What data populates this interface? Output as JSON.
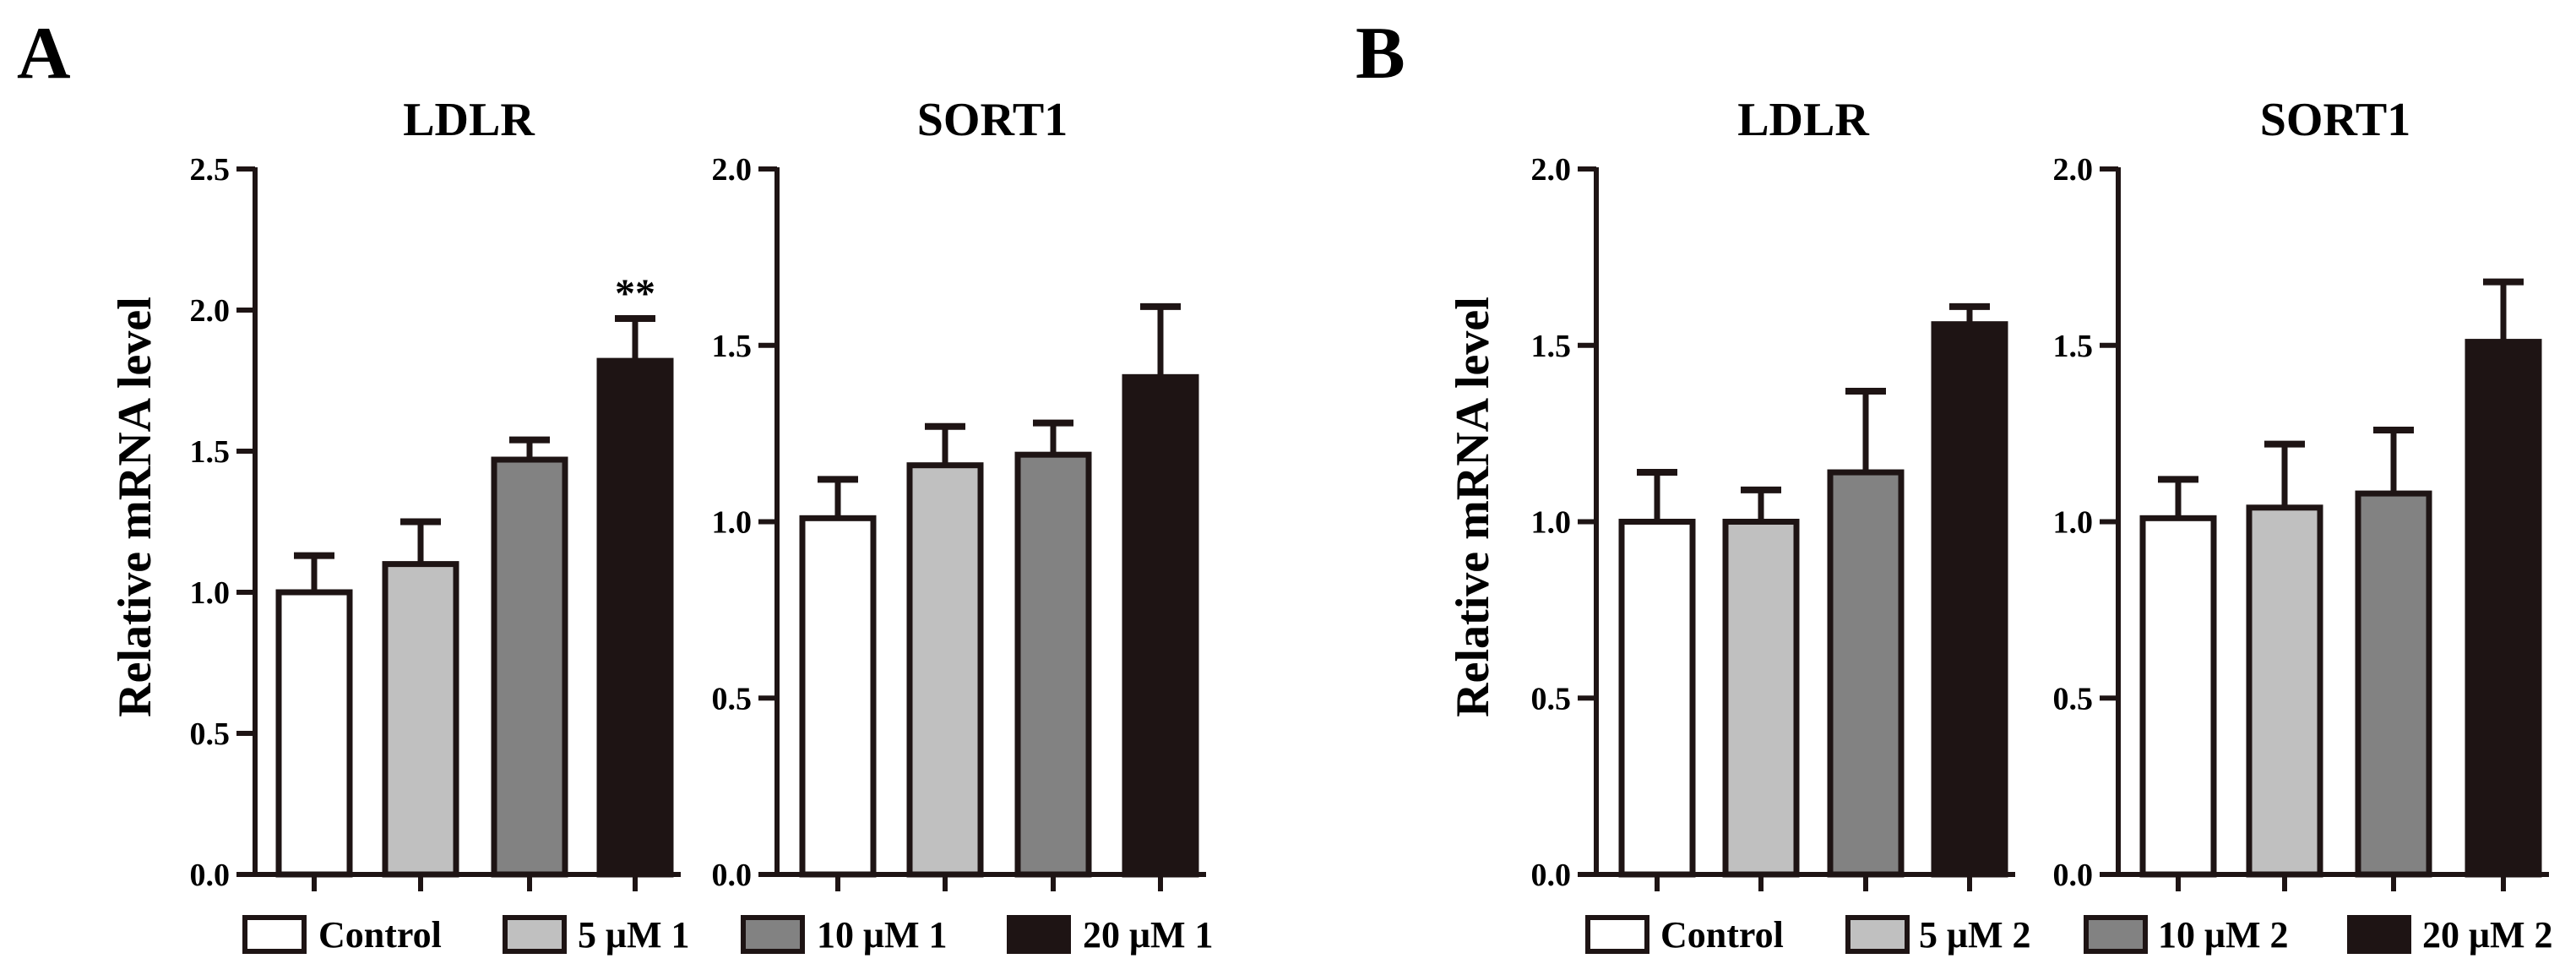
{
  "colors": {
    "axis": "#1e1414",
    "bar_stroke": "#1e1414",
    "fills": [
      "#ffffff",
      "#c0c0c0",
      "#828282",
      "#1e1414"
    ]
  },
  "chart_data": [
    {
      "panel": "A",
      "type": "bar",
      "title": "LDLR",
      "ylabel": "Relative mRNA level",
      "ylim": [
        0,
        2.5
      ],
      "yticks": [
        "0.0",
        "0.5",
        "1.0",
        "1.5",
        "2.0",
        "2.5"
      ],
      "categories": [
        "Control",
        "5 μM 1",
        "10 μM 1",
        "20 μM 1"
      ],
      "values": [
        1.0,
        1.1,
        1.47,
        1.82
      ],
      "errors": [
        0.13,
        0.15,
        0.07,
        0.15
      ],
      "annotations": [
        "",
        "",
        "",
        "**"
      ]
    },
    {
      "panel": "A",
      "type": "bar",
      "title": "SORT1",
      "ylabel": "",
      "ylim": [
        0,
        2.0
      ],
      "yticks": [
        "0.0",
        "0.5",
        "1.0",
        "1.5",
        "2.0"
      ],
      "categories": [
        "Control",
        "5 μM 1",
        "10 μM 1",
        "20 μM 1"
      ],
      "values": [
        1.01,
        1.16,
        1.19,
        1.41
      ],
      "errors": [
        0.11,
        0.11,
        0.09,
        0.2
      ],
      "annotations": [
        "",
        "",
        "",
        ""
      ]
    },
    {
      "panel": "B",
      "type": "bar",
      "title": "LDLR",
      "ylabel": "Relative mRNA level",
      "ylim": [
        0,
        2.0
      ],
      "yticks": [
        "0.0",
        "0.5",
        "1.0",
        "1.5",
        "2.0"
      ],
      "categories": [
        "Control",
        "5 μM 2",
        "10 μM 2",
        "20 μM 2"
      ],
      "values": [
        1.0,
        1.0,
        1.14,
        1.56
      ],
      "errors": [
        0.14,
        0.09,
        0.23,
        0.05
      ],
      "annotations": [
        "",
        "",
        "",
        ""
      ]
    },
    {
      "panel": "B",
      "type": "bar",
      "title": "SORT1",
      "ylabel": "",
      "ylim": [
        0,
        2.0
      ],
      "yticks": [
        "0.0",
        "0.5",
        "1.0",
        "1.5",
        "2.0"
      ],
      "categories": [
        "Control",
        "5 μM 2",
        "10 μM 2",
        "20 μM 2"
      ],
      "values": [
        1.01,
        1.04,
        1.08,
        1.51
      ],
      "errors": [
        0.11,
        0.18,
        0.18,
        0.17
      ],
      "annotations": [
        "",
        "",
        "",
        ""
      ]
    }
  ],
  "panel_labels": [
    "A",
    "B"
  ],
  "legends": [
    [
      "Control",
      "5 μM 1",
      "10 μM 1",
      "20 μM 1"
    ],
    [
      "Control",
      "5 μM 2",
      "10 μM 2",
      "20 μM 2"
    ]
  ]
}
